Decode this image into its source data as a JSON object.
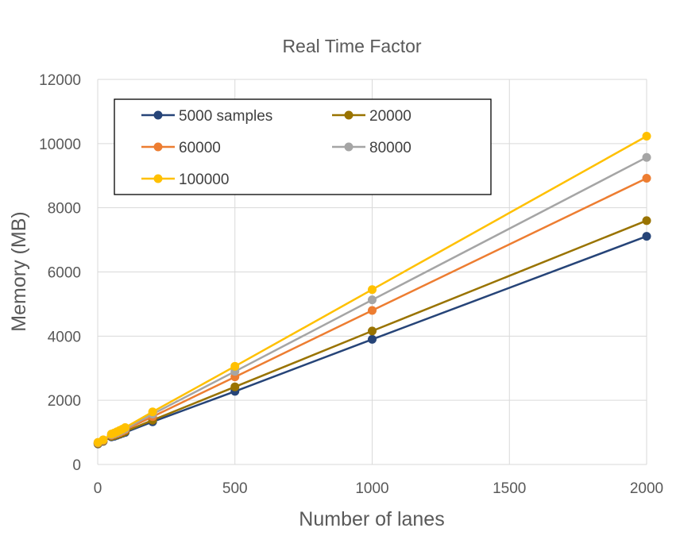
{
  "chart_data": {
    "type": "line",
    "title": "Real Time Factor",
    "xlabel": "Number of lanes",
    "ylabel": "Memory (MB)",
    "xlim": [
      0,
      2000
    ],
    "ylim": [
      0,
      12000
    ],
    "x_ticks": [
      0,
      500,
      1000,
      1500,
      2000
    ],
    "y_ticks": [
      0,
      2000,
      4000,
      6000,
      8000,
      10000,
      12000
    ],
    "grid": true,
    "legend_placement": "top-left inside",
    "x": [
      1,
      20,
      50,
      60,
      70,
      80,
      90,
      100,
      200,
      500,
      1000,
      2000
    ],
    "series": [
      {
        "name": "5000 samples",
        "color": "#264478",
        "values": [
          640,
          720,
          860,
          880,
          910,
          940,
          970,
          1000,
          1330,
          2280,
          3900,
          7110
        ]
      },
      {
        "name": "20000",
        "color": "#997300",
        "values": [
          650,
          730,
          880,
          900,
          930,
          960,
          990,
          1030,
          1380,
          2420,
          4160,
          7600
        ]
      },
      {
        "name": "60000",
        "color": "#ED7D31",
        "values": [
          670,
          750,
          910,
          940,
          970,
          1000,
          1040,
          1080,
          1490,
          2730,
          4800,
          8920
        ]
      },
      {
        "name": "80000",
        "color": "#A5A5A5",
        "values": [
          680,
          760,
          930,
          960,
          990,
          1030,
          1070,
          1110,
          1570,
          2900,
          5130,
          9570
        ]
      },
      {
        "name": "100000",
        "color": "#FFC000",
        "values": [
          690,
          770,
          950,
          980,
          1020,
          1060,
          1100,
          1150,
          1640,
          3060,
          5450,
          10230
        ]
      }
    ]
  }
}
